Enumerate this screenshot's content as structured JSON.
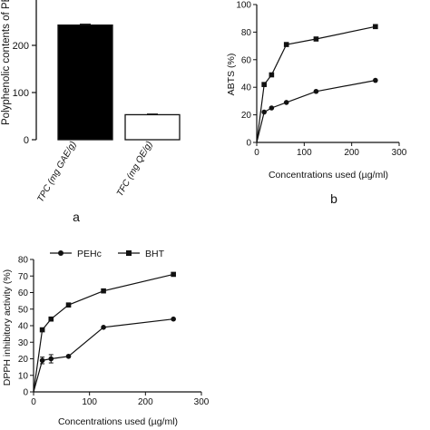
{
  "chart_data": [
    {
      "panel": "a",
      "type": "bar",
      "ylabel": "Polyphenolic contents of PEF",
      "categories": [
        "TPC (mg GAE/g)",
        "TFC (mg QE/g)"
      ],
      "values": [
        243,
        53
      ],
      "errors": [
        2,
        1.5
      ],
      "bar_fills": [
        "#000000",
        "#ffffff"
      ],
      "ylim": [
        0,
        300
      ],
      "yticks": [
        "0",
        "100",
        "200"
      ],
      "caption": "a"
    },
    {
      "panel": "b",
      "type": "line",
      "xlabel": "Concentrations used (µg/ml)",
      "ylabel": "ABTS (%)",
      "xlim": [
        0,
        300
      ],
      "ylim": [
        0,
        100
      ],
      "xticks": [
        "0",
        "100",
        "200",
        "300"
      ],
      "yticks": [
        "0",
        "20",
        "40",
        "60",
        "80",
        "100"
      ],
      "series": [
        {
          "marker": "square",
          "x": [
            0,
            15.6,
            31.25,
            62.5,
            125,
            250
          ],
          "y": [
            0,
            42,
            49,
            71,
            75,
            84
          ]
        },
        {
          "marker": "circle",
          "x": [
            0,
            15.6,
            31.25,
            62.5,
            125,
            250
          ],
          "y": [
            0,
            22,
            25,
            29,
            37,
            45
          ]
        }
      ],
      "caption": "b"
    },
    {
      "panel": "c",
      "type": "line",
      "xlabel": "Concentrations used (µg/ml)",
      "ylabel": "DPPH inhibitory activity (%)",
      "xlim": [
        0,
        300
      ],
      "ylim": [
        0,
        80
      ],
      "xticks": [
        "0",
        "100",
        "200",
        "300"
      ],
      "yticks": [
        "0",
        "10",
        "20",
        "30",
        "40",
        "50",
        "60",
        "70",
        "80"
      ],
      "legend": [
        "PEHc",
        "BHT"
      ],
      "series": [
        {
          "name": "PEHc",
          "marker": "circle",
          "x": [
            0,
            15.6,
            31.25,
            62.5,
            125,
            250
          ],
          "y": [
            0,
            19,
            20,
            21.5,
            39,
            44
          ]
        },
        {
          "name": "BHT",
          "marker": "square",
          "x": [
            0,
            15.6,
            31.25,
            62.5,
            125,
            250
          ],
          "y": [
            0,
            37.5,
            44,
            52.5,
            61,
            71
          ]
        }
      ]
    }
  ]
}
